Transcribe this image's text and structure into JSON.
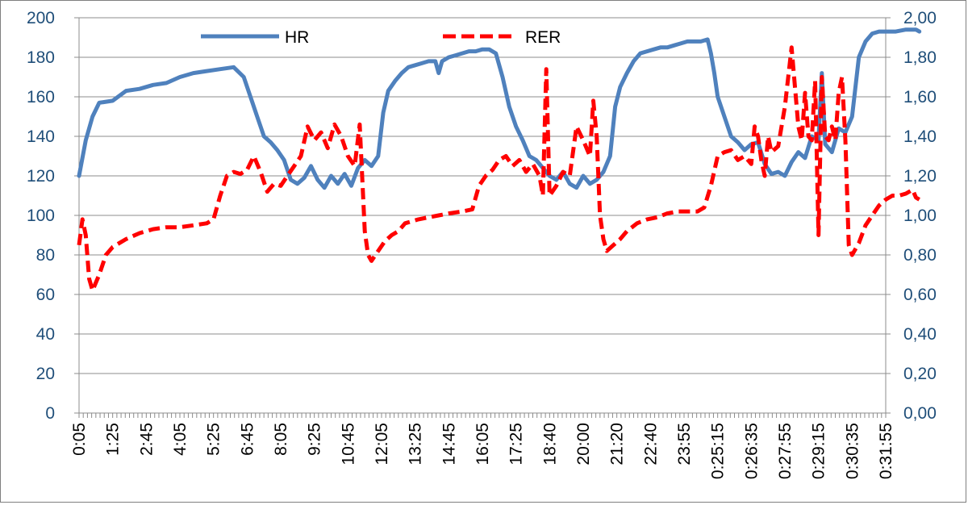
{
  "chart_data": {
    "type": "line",
    "title": "",
    "xlabel": "",
    "ylabel": "",
    "y_left": {
      "min": 0,
      "max": 200,
      "ticks": [
        "0",
        "20",
        "40",
        "60",
        "80",
        "100",
        "120",
        "140",
        "160",
        "180",
        "200"
      ]
    },
    "y_right": {
      "min": 0,
      "max": 2.0,
      "ticks": [
        "0,00",
        "0,20",
        "0,40",
        "0,60",
        "0,80",
        "1,00",
        "1,20",
        "1,40",
        "1,60",
        "1,80",
        "2,00"
      ]
    },
    "x_ticks": [
      "0:05",
      "1:25",
      "2:45",
      "4:05",
      "5:25",
      "6:45",
      "8:05",
      "9:25",
      "10:45",
      "12:05",
      "13:25",
      "14:45",
      "16:05",
      "17:25",
      "18:40",
      "20:00",
      "21:20",
      "22:40",
      "23:55",
      "0:25:15",
      "0:26:35",
      "0:27:55",
      "0:29:15",
      "0:30:35",
      "0:31:55"
    ],
    "grid": true,
    "legend_position": "top",
    "series": [
      {
        "name": "HR",
        "axis": "left",
        "color": "#4f81bd",
        "style": "solid",
        "values": [
          [
            0,
            120
          ],
          [
            0.2,
            138
          ],
          [
            0.4,
            150
          ],
          [
            0.6,
            157
          ],
          [
            1.0,
            158
          ],
          [
            1.4,
            163
          ],
          [
            1.8,
            164
          ],
          [
            2.2,
            166
          ],
          [
            2.6,
            167
          ],
          [
            3.0,
            170
          ],
          [
            3.4,
            172
          ],
          [
            3.8,
            173
          ],
          [
            4.2,
            174
          ],
          [
            4.6,
            175
          ],
          [
            4.9,
            170
          ],
          [
            5.1,
            160
          ],
          [
            5.3,
            150
          ],
          [
            5.5,
            140
          ],
          [
            5.7,
            137
          ],
          [
            5.9,
            133
          ],
          [
            6.1,
            128
          ],
          [
            6.3,
            118
          ],
          [
            6.5,
            116
          ],
          [
            6.7,
            119
          ],
          [
            6.9,
            125
          ],
          [
            7.1,
            118
          ],
          [
            7.3,
            114
          ],
          [
            7.5,
            120
          ],
          [
            7.7,
            116
          ],
          [
            7.9,
            121
          ],
          [
            8.1,
            115
          ],
          [
            8.3,
            124
          ],
          [
            8.5,
            128
          ],
          [
            8.7,
            125
          ],
          [
            8.9,
            130
          ],
          [
            9.05,
            152
          ],
          [
            9.2,
            163
          ],
          [
            9.4,
            168
          ],
          [
            9.6,
            172
          ],
          [
            9.8,
            175
          ],
          [
            10.0,
            176
          ],
          [
            10.2,
            177
          ],
          [
            10.4,
            178
          ],
          [
            10.6,
            178
          ],
          [
            10.7,
            172
          ],
          [
            10.8,
            178
          ],
          [
            11.0,
            180
          ],
          [
            11.2,
            181
          ],
          [
            11.4,
            182
          ],
          [
            11.6,
            183
          ],
          [
            11.8,
            183
          ],
          [
            12.0,
            184
          ],
          [
            12.2,
            184
          ],
          [
            12.4,
            182
          ],
          [
            12.6,
            170
          ],
          [
            12.8,
            155
          ],
          [
            13.0,
            145
          ],
          [
            13.2,
            138
          ],
          [
            13.4,
            130
          ],
          [
            13.6,
            128
          ],
          [
            13.8,
            124
          ],
          [
            14.0,
            120
          ],
          [
            14.2,
            118
          ],
          [
            14.4,
            122
          ],
          [
            14.6,
            116
          ],
          [
            14.8,
            114
          ],
          [
            15.0,
            120
          ],
          [
            15.2,
            116
          ],
          [
            15.4,
            118
          ],
          [
            15.6,
            122
          ],
          [
            15.8,
            130
          ],
          [
            15.95,
            155
          ],
          [
            16.1,
            165
          ],
          [
            16.3,
            172
          ],
          [
            16.5,
            178
          ],
          [
            16.7,
            182
          ],
          [
            16.9,
            183
          ],
          [
            17.1,
            184
          ],
          [
            17.3,
            185
          ],
          [
            17.5,
            185
          ],
          [
            17.7,
            186
          ],
          [
            17.9,
            187
          ],
          [
            18.1,
            188
          ],
          [
            18.3,
            188
          ],
          [
            18.5,
            188
          ],
          [
            18.7,
            189
          ],
          [
            18.8,
            182
          ],
          [
            18.9,
            172
          ],
          [
            19.0,
            160
          ],
          [
            19.2,
            150
          ],
          [
            19.4,
            140
          ],
          [
            19.6,
            137
          ],
          [
            19.8,
            133
          ],
          [
            20.0,
            136
          ],
          [
            20.2,
            137
          ],
          [
            20.4,
            126
          ],
          [
            20.6,
            121
          ],
          [
            20.8,
            122
          ],
          [
            21.0,
            120
          ],
          [
            21.2,
            127
          ],
          [
            21.4,
            132
          ],
          [
            21.6,
            129
          ],
          [
            21.8,
            140
          ],
          [
            22.0,
            138
          ],
          [
            22.1,
            172
          ],
          [
            22.2,
            136
          ],
          [
            22.4,
            132
          ],
          [
            22.6,
            144
          ],
          [
            22.8,
            142
          ],
          [
            23.0,
            150
          ],
          [
            23.2,
            180
          ],
          [
            23.4,
            188
          ],
          [
            23.6,
            192
          ],
          [
            23.8,
            193
          ],
          [
            24.0,
            193
          ],
          [
            24.3,
            193
          ],
          [
            24.6,
            194
          ],
          [
            24.9,
            194
          ],
          [
            25.0,
            193
          ]
        ]
      },
      {
        "name": "RER",
        "axis": "right",
        "color": "#ff0000",
        "style": "dashed",
        "values": [
          [
            0,
            0.85
          ],
          [
            0.1,
            0.98
          ],
          [
            0.2,
            0.9
          ],
          [
            0.3,
            0.68
          ],
          [
            0.4,
            0.62
          ],
          [
            0.6,
            0.7
          ],
          [
            0.8,
            0.8
          ],
          [
            1.0,
            0.84
          ],
          [
            1.4,
            0.88
          ],
          [
            1.8,
            0.91
          ],
          [
            2.2,
            0.93
          ],
          [
            2.6,
            0.94
          ],
          [
            3.0,
            0.94
          ],
          [
            3.4,
            0.95
          ],
          [
            3.8,
            0.96
          ],
          [
            4.0,
            0.98
          ],
          [
            4.2,
            1.1
          ],
          [
            4.4,
            1.2
          ],
          [
            4.6,
            1.22
          ],
          [
            4.8,
            1.21
          ],
          [
            5.0,
            1.23
          ],
          [
            5.2,
            1.3
          ],
          [
            5.4,
            1.22
          ],
          [
            5.6,
            1.12
          ],
          [
            5.8,
            1.16
          ],
          [
            6.0,
            1.15
          ],
          [
            6.2,
            1.2
          ],
          [
            6.4,
            1.25
          ],
          [
            6.6,
            1.3
          ],
          [
            6.8,
            1.45
          ],
          [
            7.0,
            1.38
          ],
          [
            7.2,
            1.42
          ],
          [
            7.4,
            1.34
          ],
          [
            7.6,
            1.46
          ],
          [
            7.8,
            1.4
          ],
          [
            8.0,
            1.3
          ],
          [
            8.2,
            1.25
          ],
          [
            8.35,
            1.46
          ],
          [
            8.5,
            0.92
          ],
          [
            8.6,
            0.8
          ],
          [
            8.7,
            0.77
          ],
          [
            8.9,
            0.82
          ],
          [
            9.1,
            0.87
          ],
          [
            9.3,
            0.9
          ],
          [
            9.5,
            0.92
          ],
          [
            9.7,
            0.96
          ],
          [
            9.9,
            0.97
          ],
          [
            10.1,
            0.98
          ],
          [
            10.4,
            0.99
          ],
          [
            10.7,
            1.0
          ],
          [
            11.0,
            1.01
          ],
          [
            11.4,
            1.02
          ],
          [
            11.7,
            1.03
          ],
          [
            11.9,
            1.15
          ],
          [
            12.1,
            1.2
          ],
          [
            12.3,
            1.23
          ],
          [
            12.5,
            1.28
          ],
          [
            12.7,
            1.3
          ],
          [
            12.9,
            1.25
          ],
          [
            13.1,
            1.28
          ],
          [
            13.3,
            1.22
          ],
          [
            13.5,
            1.26
          ],
          [
            13.7,
            1.2
          ],
          [
            13.8,
            1.1
          ],
          [
            13.9,
            1.74
          ],
          [
            14.0,
            1.1
          ],
          [
            14.2,
            1.15
          ],
          [
            14.4,
            1.22
          ],
          [
            14.6,
            1.2
          ],
          [
            14.8,
            1.45
          ],
          [
            15.0,
            1.38
          ],
          [
            15.2,
            1.3
          ],
          [
            15.3,
            1.58
          ],
          [
            15.4,
            1.4
          ],
          [
            15.5,
            1.0
          ],
          [
            15.6,
            0.88
          ],
          [
            15.7,
            0.82
          ],
          [
            15.9,
            0.85
          ],
          [
            16.1,
            0.88
          ],
          [
            16.3,
            0.92
          ],
          [
            16.6,
            0.96
          ],
          [
            16.9,
            0.98
          ],
          [
            17.2,
            0.99
          ],
          [
            17.5,
            1.01
          ],
          [
            17.8,
            1.02
          ],
          [
            18.1,
            1.02
          ],
          [
            18.4,
            1.02
          ],
          [
            18.6,
            1.04
          ],
          [
            18.8,
            1.15
          ],
          [
            19.0,
            1.3
          ],
          [
            19.2,
            1.32
          ],
          [
            19.4,
            1.33
          ],
          [
            19.6,
            1.28
          ],
          [
            19.8,
            1.3
          ],
          [
            20.0,
            1.26
          ],
          [
            20.1,
            1.45
          ],
          [
            20.2,
            1.4
          ],
          [
            20.3,
            1.28
          ],
          [
            20.4,
            1.2
          ],
          [
            20.5,
            1.4
          ],
          [
            20.6,
            1.32
          ],
          [
            20.8,
            1.35
          ],
          [
            21.0,
            1.55
          ],
          [
            21.2,
            1.85
          ],
          [
            21.4,
            1.45
          ],
          [
            21.5,
            1.38
          ],
          [
            21.6,
            1.62
          ],
          [
            21.7,
            1.4
          ],
          [
            21.8,
            1.38
          ],
          [
            21.9,
            1.68
          ],
          [
            22.0,
            0.9
          ],
          [
            22.1,
            1.7
          ],
          [
            22.2,
            1.4
          ],
          [
            22.3,
            1.38
          ],
          [
            22.4,
            1.45
          ],
          [
            22.5,
            1.38
          ],
          [
            22.6,
            1.62
          ],
          [
            22.7,
            1.7
          ],
          [
            22.8,
            1.38
          ],
          [
            22.9,
            0.85
          ],
          [
            23.0,
            0.8
          ],
          [
            23.2,
            0.86
          ],
          [
            23.4,
            0.95
          ],
          [
            23.6,
            1.0
          ],
          [
            23.8,
            1.05
          ],
          [
            24.0,
            1.08
          ],
          [
            24.2,
            1.1
          ],
          [
            24.4,
            1.1
          ],
          [
            24.6,
            1.11
          ],
          [
            24.8,
            1.13
          ],
          [
            24.9,
            1.09
          ],
          [
            25.0,
            1.08
          ]
        ]
      }
    ]
  }
}
